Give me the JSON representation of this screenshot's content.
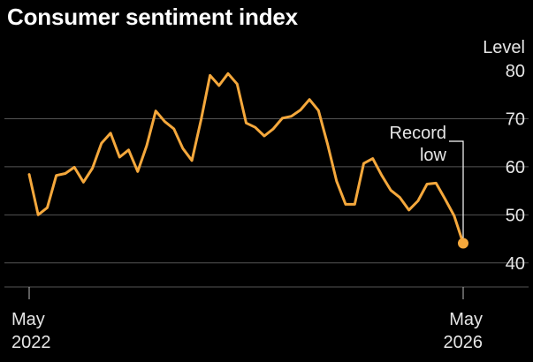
{
  "chart_data": {
    "type": "line",
    "title": "Consumer sentiment index",
    "ylabel": "Level",
    "ylim": [
      35,
      80
    ],
    "yticks": [
      40,
      50,
      60,
      70,
      80
    ],
    "xlim": [
      "2022-05",
      "2026-05"
    ],
    "xtick_labels": [
      {
        "month": "May",
        "year": "2022"
      },
      {
        "month": "May",
        "year": "2026"
      }
    ],
    "grid": true,
    "colors": {
      "line": "#f5a83c",
      "grid": "#555555",
      "marker": "#f5a83c",
      "background": "#000000"
    },
    "series": [
      {
        "x": [
          "2022-05",
          "2022-06",
          "2022-07",
          "2022-08",
          "2022-09",
          "2022-10",
          "2022-11",
          "2022-12",
          "2023-01",
          "2023-02",
          "2023-03",
          "2023-04",
          "2023-05",
          "2023-06",
          "2023-07",
          "2023-08",
          "2023-09",
          "2023-10",
          "2023-11",
          "2023-12",
          "2024-01",
          "2024-02",
          "2024-03",
          "2024-04",
          "2024-05",
          "2024-06",
          "2024-07",
          "2024-08",
          "2024-09",
          "2024-10",
          "2024-11",
          "2024-12",
          "2025-01",
          "2025-02",
          "2025-03",
          "2025-04",
          "2025-05",
          "2025-06",
          "2025-07",
          "2025-08",
          "2025-09",
          "2025-10",
          "2025-11",
          "2025-12",
          "2026-01",
          "2026-02",
          "2026-03",
          "2026-04",
          "2026-05"
        ],
        "values": [
          58.4,
          50.0,
          51.5,
          58.2,
          58.6,
          59.9,
          56.8,
          59.7,
          64.9,
          67.0,
          62.0,
          63.5,
          59.0,
          64.4,
          71.6,
          69.4,
          67.9,
          63.8,
          61.3,
          69.7,
          79.0,
          76.9,
          79.4,
          77.2,
          69.1,
          68.2,
          66.4,
          67.9,
          70.1,
          70.5,
          71.8,
          74.0,
          71.7,
          64.7,
          57.0,
          52.2,
          52.2,
          60.7,
          61.7,
          58.2,
          55.1,
          53.6,
          51.0,
          52.9,
          56.4,
          56.6,
          53.3,
          49.8,
          44.1
        ]
      }
    ],
    "annotation": {
      "line1": "Record",
      "line2": "low",
      "target_date": "2026-05",
      "target_value": 44.1
    }
  }
}
